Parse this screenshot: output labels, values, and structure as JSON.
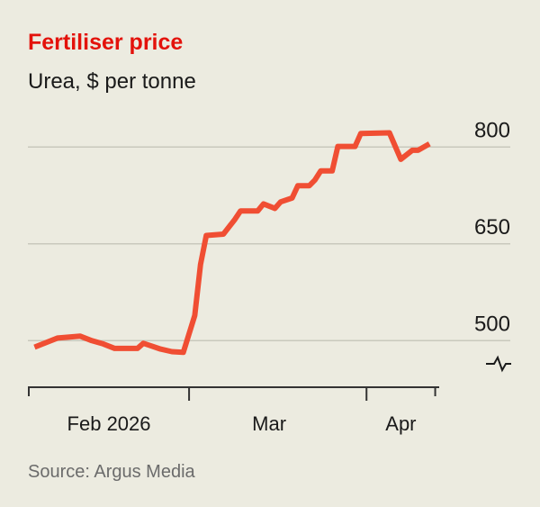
{
  "chart_data": {
    "type": "line",
    "title": "Fertiliser price",
    "subtitle": "Urea, $ per tonne",
    "source": "Source: Argus Media",
    "xlabel": "",
    "ylabel": "",
    "xlim": [
      "2026-02-01",
      "2026-04-13"
    ],
    "ylim": [
      430,
      830
    ],
    "y_axis_break": true,
    "grid": true,
    "ytick_values": [
      500,
      650,
      800
    ],
    "yticks": [
      "500",
      "650",
      "800"
    ],
    "xtick_dates": [
      "2026-02-01",
      "2026-03-01",
      "2026-04-01",
      "2026-04-13"
    ],
    "xtick_labels": [
      {
        "label": "Feb 2026",
        "center": "2026-02-15"
      },
      {
        "label": "Mar",
        "center": "2026-03-15"
      },
      {
        "label": "Apr",
        "center": "2026-04-07"
      }
    ],
    "colors": {
      "line": "#f04e33",
      "title": "#e3120b",
      "background": "#ecebe0",
      "grid": "#c9c8bd"
    },
    "series": [
      {
        "points": [
          [
            "2026-02-02",
            490
          ],
          [
            "2026-02-06",
            504
          ],
          [
            "2026-02-10",
            507
          ],
          [
            "2026-02-12",
            500
          ],
          [
            "2026-02-14",
            495
          ],
          [
            "2026-02-16",
            488
          ],
          [
            "2026-02-20",
            488
          ],
          [
            "2026-02-21",
            496
          ],
          [
            "2026-02-22",
            493
          ],
          [
            "2026-02-24",
            487
          ],
          [
            "2026-02-26",
            483
          ],
          [
            "2026-02-28",
            482
          ],
          [
            "2026-03-02",
            539
          ],
          [
            "2026-03-03",
            618
          ],
          [
            "2026-03-04",
            663
          ],
          [
            "2026-03-07",
            665
          ],
          [
            "2026-03-09",
            688
          ],
          [
            "2026-03-10",
            701
          ],
          [
            "2026-03-13",
            701
          ],
          [
            "2026-03-14",
            712
          ],
          [
            "2026-03-16",
            705
          ],
          [
            "2026-03-17",
            715
          ],
          [
            "2026-03-19",
            721
          ],
          [
            "2026-03-20",
            740
          ],
          [
            "2026-03-22",
            740
          ],
          [
            "2026-03-23",
            749
          ],
          [
            "2026-03-24",
            763
          ],
          [
            "2026-03-26",
            763
          ],
          [
            "2026-03-27",
            801
          ],
          [
            "2026-03-30",
            801
          ],
          [
            "2026-03-31",
            821
          ],
          [
            "2026-04-05",
            822
          ],
          [
            "2026-04-07",
            781
          ],
          [
            "2026-04-09",
            795
          ],
          [
            "2026-04-10",
            795
          ],
          [
            "2026-04-12",
            805
          ]
        ]
      }
    ]
  }
}
